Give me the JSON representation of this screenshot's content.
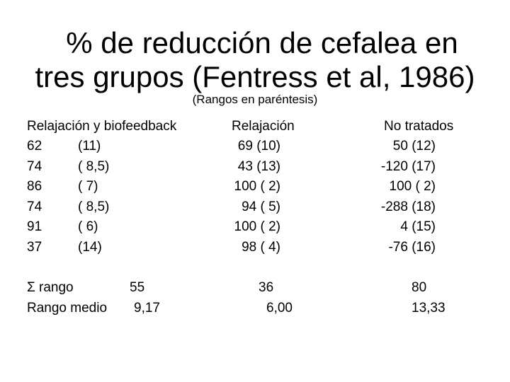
{
  "title_line1": "% de reducción de cefalea en",
  "title_line2": "tres grupos (Fentress et al, 1986)",
  "subtitle": "(Rangos en paréntesis)",
  "headers": {
    "relajacion_biofeedback": "Relajación y biofeedback",
    "relajacion": "Relajación",
    "no_tratados": "No tratados"
  },
  "rows": [
    {
      "bio_value": "62",
      "bio_rank": "(11)",
      "rel": "69 (10)",
      "not": "50 (12)"
    },
    {
      "bio_value": "74",
      "bio_rank": "( 8,5)",
      "rel": "43 (13)",
      "not": "-120 (17)"
    },
    {
      "bio_value": "86",
      "bio_rank": "( 7)",
      "rel": "100 ( 2)",
      "not": "100 ( 2)"
    },
    {
      "bio_value": "74",
      "bio_rank": "( 8,5)",
      "rel": "94 ( 5)",
      "not": "-288 (18)"
    },
    {
      "bio_value": "91",
      "bio_rank": "( 6)",
      "rel": "100 ( 2)",
      "not": "4 (15)"
    },
    {
      "bio_value": "37",
      "bio_rank": "(14)",
      "rel": "98 ( 4)",
      "not": "-76 (16)"
    }
  ],
  "sum_row": {
    "label": "Σ rango",
    "bio": "55",
    "rel": "36",
    "not": "80"
  },
  "mean_row": {
    "label": "Rango medio",
    "bio": "9,17",
    "rel": "6,00",
    "not": "13,33"
  }
}
